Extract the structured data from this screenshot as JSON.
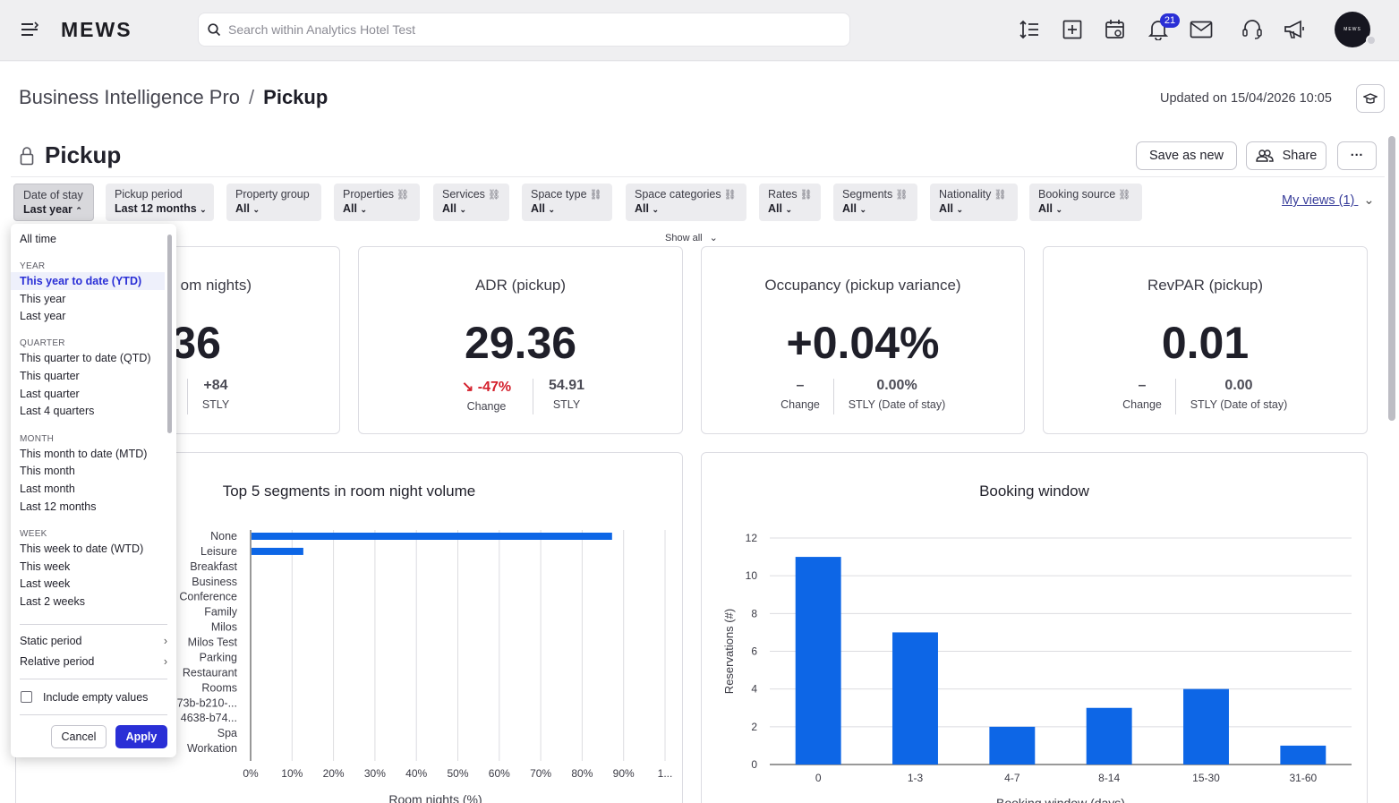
{
  "topbar": {
    "brand": "MEWS",
    "search_placeholder": "Search within Analytics Hotel Test",
    "notifications_count": "21",
    "avatar_text": "MEWS"
  },
  "header": {
    "breadcrumb_parent": "Business Intelligence Pro",
    "breadcrumb_separator": "/",
    "breadcrumb_current": "Pickup",
    "updated": "Updated on 15/04/2026 10:05"
  },
  "report": {
    "title": "Pickup",
    "save_as_new": "Save as new",
    "share": "Share",
    "more": "···"
  },
  "filters": [
    {
      "label": "Date of stay",
      "value": "Last year",
      "linked": false,
      "open": true
    },
    {
      "label": "Pickup period",
      "value": "Last 12 months",
      "linked": false
    },
    {
      "label": "Property group",
      "value": "All",
      "linked": false
    },
    {
      "label": "Properties",
      "value": "All",
      "linked": true
    },
    {
      "label": "Services",
      "value": "All",
      "linked": true
    },
    {
      "label": "Space type",
      "value": "All",
      "linked": true
    },
    {
      "label": "Space categories",
      "value": "All",
      "linked": true
    },
    {
      "label": "Rates",
      "value": "All",
      "linked": true
    },
    {
      "label": "Segments",
      "value": "All",
      "linked": true
    },
    {
      "label": "Nationality",
      "value": "All",
      "linked": true
    },
    {
      "label": "Booking source",
      "value": "All",
      "linked": true
    }
  ],
  "my_views": "My views (1)",
  "show_all": "Show all",
  "kpis": [
    {
      "title": "Room nights",
      "title_visible": "om nights)",
      "value": "36",
      "change": "",
      "stly": "+84",
      "stly_label": "STLY"
    },
    {
      "title": "ADR (pickup)",
      "value": "29.36",
      "change": "-47%",
      "change_label": "Change",
      "stly": "54.91",
      "stly_label": "STLY"
    },
    {
      "title": "Occupancy (pickup variance)",
      "value": "+0.04%",
      "change": "–",
      "change_label": "Change",
      "stly": "0.00%",
      "stly_label": "STLY (Date of stay)"
    },
    {
      "title": "RevPAR (pickup)",
      "value": "0.01",
      "change": "–",
      "change_label": "Change",
      "stly": "0.00",
      "stly_label": "STLY (Date of stay)"
    }
  ],
  "date_dropdown": {
    "all_time": "All time",
    "year_head": "YEAR",
    "year_items": [
      "This year to date (YTD)",
      "This year",
      "Last year"
    ],
    "quarter_head": "QUARTER",
    "quarter_items": [
      "This quarter to date (QTD)",
      "This quarter",
      "Last quarter",
      "Last 4 quarters"
    ],
    "month_head": "MONTH",
    "month_items": [
      "This month to date (MTD)",
      "This month",
      "Last month",
      "Last 12 months"
    ],
    "week_head": "WEEK",
    "week_items": [
      "This week to date (WTD)",
      "This week",
      "Last week",
      "Last 2 weeks"
    ],
    "static_period": "Static period",
    "relative_period": "Relative period",
    "include_empty": "Include empty values",
    "cancel": "Cancel",
    "apply": "Apply",
    "selected": "This year to date (YTD)"
  },
  "colors": {
    "accent": "#2a2fd6",
    "bar": "#0d66e6",
    "negative": "#d4202c"
  },
  "chart_data": [
    {
      "type": "bar",
      "orientation": "horizontal",
      "title": "Top 5 segments in room night volume",
      "xlabel": "Room nights (%)",
      "categories": [
        "None",
        "Leisure",
        "Breakfast",
        "Business",
        "Conference",
        "Family",
        "Milos",
        "Milos Test",
        "Parking",
        "Restaurant",
        "Rooms",
        "73b-b210-...",
        "4638-b74...",
        "Spa",
        "Workation"
      ],
      "values": [
        87,
        12.5,
        0,
        0,
        0,
        0,
        0,
        0,
        0,
        0,
        0,
        0,
        0,
        0,
        0
      ],
      "x_ticks": [
        "0%",
        "10%",
        "20%",
        "30%",
        "40%",
        "50%",
        "60%",
        "70%",
        "80%",
        "90%",
        "1..."
      ],
      "xlim": [
        0,
        100
      ],
      "grid": true
    },
    {
      "type": "bar",
      "title": "Booking window",
      "xlabel": "Booking window (days)",
      "ylabel": "Reservations (#)",
      "categories": [
        "0",
        "1-3",
        "4-7",
        "8-14",
        "15-30",
        "31-60"
      ],
      "values": [
        11,
        7,
        2,
        3,
        4,
        1
      ],
      "y_ticks": [
        "0",
        "2",
        "4",
        "6",
        "8",
        "10",
        "12"
      ],
      "ylim": [
        0,
        12
      ],
      "grid": true
    }
  ]
}
